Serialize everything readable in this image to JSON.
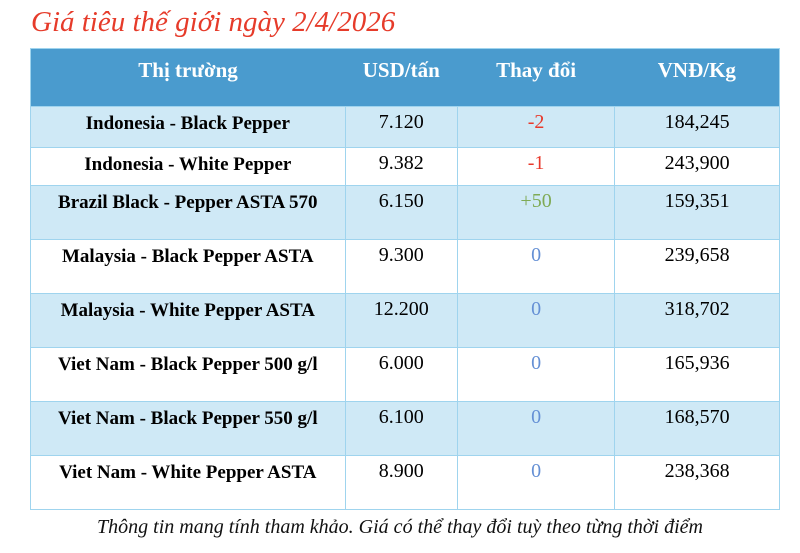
{
  "page": {
    "title": "Giá tiêu thế giới ngày 2/4/2026",
    "disclaimer": "Thông tin mang tính tham khảo. Giá có thể thay đổi tuỳ theo từng thời điểm"
  },
  "table": {
    "columns": [
      "Thị trường",
      "USD/tấn",
      "Thay đổi",
      "VNĐ/Kg"
    ],
    "rows": [
      {
        "market": "Indonesia - Black Pepper",
        "usd_per_ton": "7.120",
        "change": "-2",
        "change_dir": "down",
        "vnd_per_kg": "184,245"
      },
      {
        "market": "Indonesia - White Pepper",
        "usd_per_ton": "9.382",
        "change": "-1",
        "change_dir": "down",
        "vnd_per_kg": "243,900"
      },
      {
        "market": "Brazil Black - Pepper ASTA 570",
        "usd_per_ton": "6.150",
        "change": "+50",
        "change_dir": "up",
        "vnd_per_kg": "159,351"
      },
      {
        "market": "Malaysia - Black Pepper ASTA",
        "usd_per_ton": "9.300",
        "change": "0",
        "change_dir": "zero",
        "vnd_per_kg": "239,658"
      },
      {
        "market": "Malaysia - White Pepper ASTA",
        "usd_per_ton": "12.200",
        "change": "0",
        "change_dir": "zero",
        "vnd_per_kg": "318,702"
      },
      {
        "market": "Viet Nam - Black Pepper 500 g/l",
        "usd_per_ton": "6.000",
        "change": "0",
        "change_dir": "zero",
        "vnd_per_kg": "165,936"
      },
      {
        "market": "Viet Nam - Black Pepper 550 g/l",
        "usd_per_ton": "6.100",
        "change": "0",
        "change_dir": "zero",
        "vnd_per_kg": "168,570"
      },
      {
        "market": "Viet Nam - White Pepper ASTA",
        "usd_per_ton": "8.900",
        "change": "0",
        "change_dir": "zero",
        "vnd_per_kg": "238,368"
      }
    ]
  },
  "colors": {
    "title_red": "#e63b2a",
    "header_bg": "#4a9bce",
    "header_text": "#ffffff",
    "row_alt_bg": "#cfe9f6",
    "row_bg": "#ffffff",
    "border": "#9fd4ee",
    "change_down": "#e8392b",
    "change_up": "#7faa55",
    "change_zero": "#6590d5"
  }
}
